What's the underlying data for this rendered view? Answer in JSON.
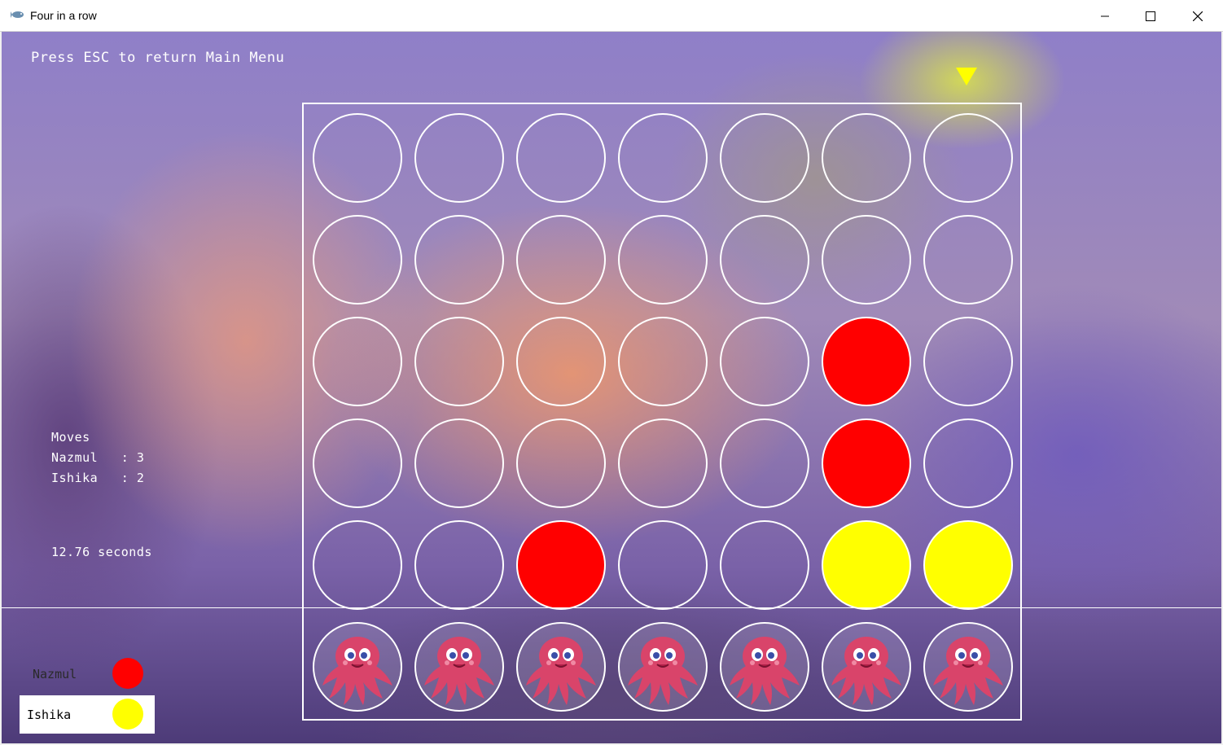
{
  "window": {
    "title": "Four in a row",
    "icon": "fish-icon",
    "controls": [
      "minimize",
      "maximize",
      "close"
    ]
  },
  "hud": {
    "esc_hint": "Press ESC to return Main Menu",
    "moves_heading": "Moves",
    "moves": [
      {
        "name": "Nazmul",
        "separator": ":",
        "count": "3"
      },
      {
        "name": "Ishika",
        "separator": ":",
        "count": "2"
      }
    ],
    "timer": "12.76 seconds"
  },
  "players": [
    {
      "name": "Nazmul",
      "color": "#ff0000",
      "active": false
    },
    {
      "name": "Ishika",
      "color": "#ffff00",
      "active": true
    }
  ],
  "game": {
    "columns": 7,
    "rows": 5,
    "drop_indicator_column": 6,
    "drop_indicator_color": "#ffff00",
    "grid": [
      [
        "",
        "",
        "",
        "",
        "",
        "",
        ""
      ],
      [
        "",
        "",
        "",
        "",
        "",
        "",
        ""
      ],
      [
        "",
        "",
        "",
        "",
        "",
        "R",
        ""
      ],
      [
        "",
        "",
        "",
        "",
        "",
        "R",
        ""
      ],
      [
        "",
        "",
        "R",
        "",
        "",
        "Y",
        "Y"
      ]
    ],
    "bottom_row_decoration": "octopus-icon"
  },
  "colors": {
    "red": "#ff0000",
    "yellow": "#ffff00",
    "board_line": "#ffffff"
  }
}
